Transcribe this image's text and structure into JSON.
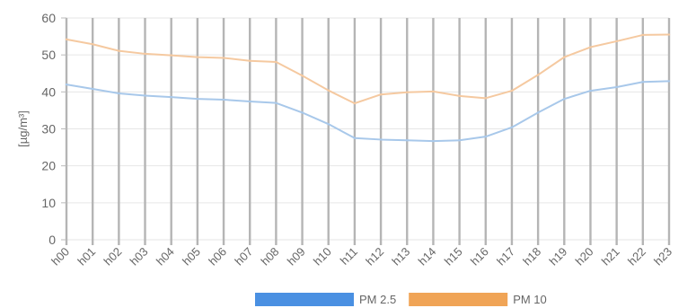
{
  "chart_data": {
    "type": "line",
    "ylabel": "[µg/m³]",
    "ylim": [
      0,
      60
    ],
    "yticks": [
      0,
      10,
      20,
      30,
      40,
      50,
      60
    ],
    "categories": [
      "h00",
      "h01",
      "h02",
      "h03",
      "h04",
      "h05",
      "h06",
      "h07",
      "h08",
      "h09",
      "h10",
      "h11",
      "h12",
      "h13",
      "h14",
      "h15",
      "h16",
      "h17",
      "h18",
      "h19",
      "h20",
      "h21",
      "h22",
      "h23"
    ],
    "grid": true,
    "legend_position": "bottom",
    "series": [
      {
        "name": "PM 2.5",
        "color": "#a8c8ea",
        "legend_color": "#4a90e2",
        "values": [
          42.0,
          40.8,
          39.6,
          39.0,
          38.6,
          38.1,
          37.9,
          37.4,
          37.0,
          34.4,
          31.3,
          27.5,
          27.1,
          26.9,
          26.7,
          26.9,
          27.9,
          30.4,
          34.4,
          38.1,
          40.3,
          41.3,
          42.7,
          42.9
        ]
      },
      {
        "name": "PM 10",
        "color": "#f5c9a0",
        "legend_color": "#f0a456",
        "values": [
          54.2,
          52.9,
          51.1,
          50.3,
          49.9,
          49.4,
          49.2,
          48.4,
          48.1,
          44.4,
          40.4,
          36.9,
          39.3,
          39.9,
          40.1,
          38.9,
          38.3,
          40.3,
          44.6,
          49.4,
          52.1,
          53.7,
          55.4,
          55.5
        ]
      }
    ]
  }
}
